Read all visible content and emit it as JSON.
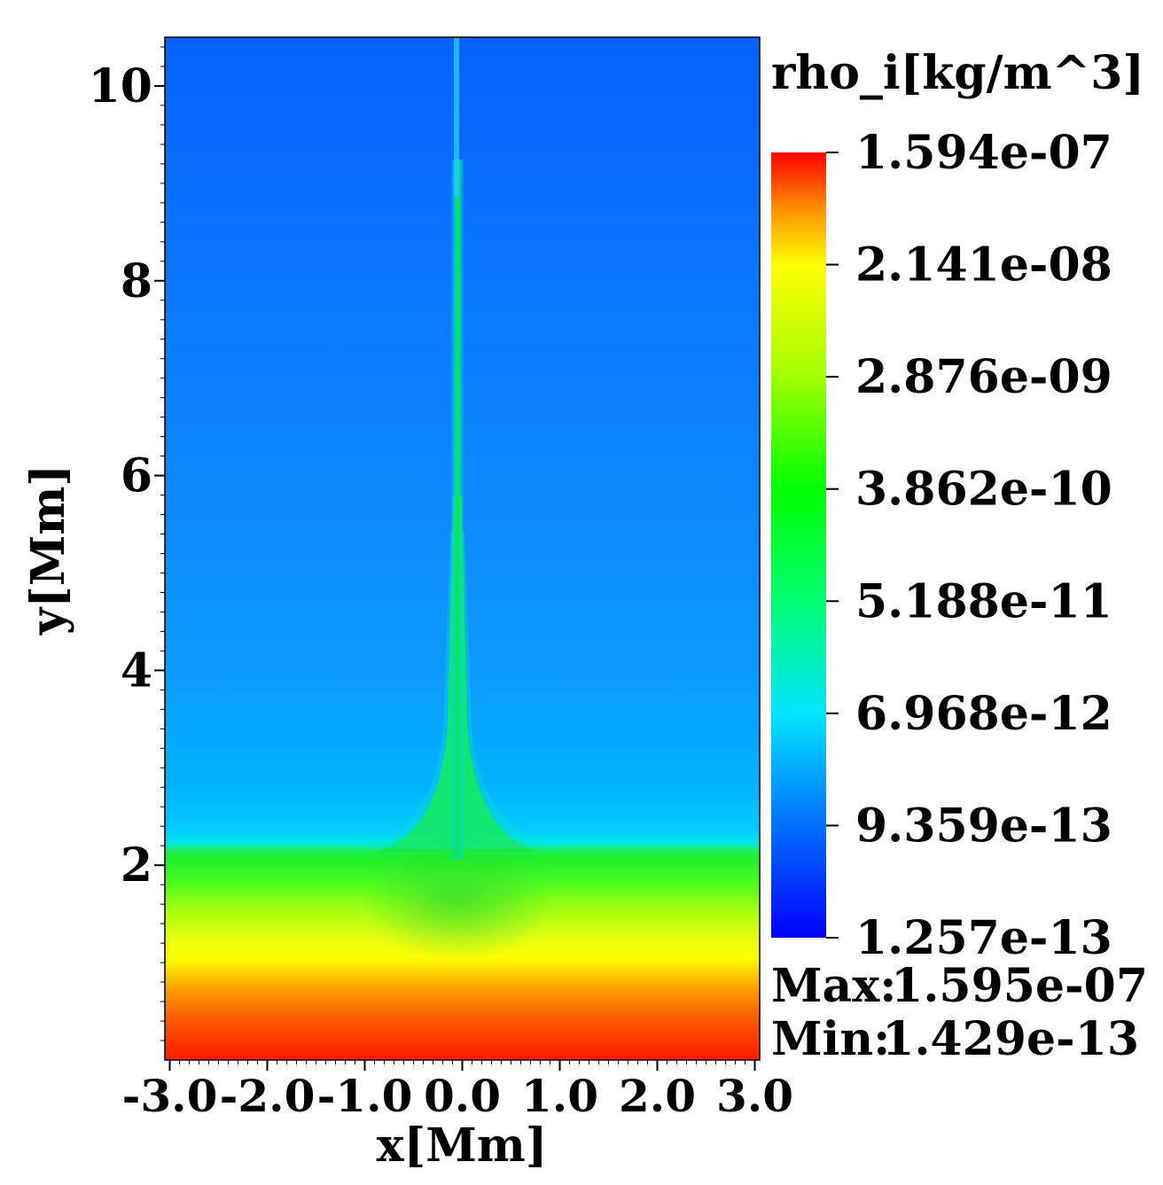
{
  "chart_data": {
    "type": "heatmap",
    "variable_label": "rho_i[kg/m^3]",
    "xlabel": "x[Mm]",
    "ylabel": "y[Mm]",
    "xlim": [
      -3.05,
      3.05
    ],
    "ylim": [
      0.0,
      10.5
    ],
    "x_ticks": [
      -3.0,
      -2.0,
      -1.0,
      0.0,
      1.0,
      2.0,
      3.0
    ],
    "x_tick_labels": [
      "-3.0",
      "-2.0",
      "-1.0",
      "0.0",
      "1.0",
      "2.0",
      "3.0"
    ],
    "y_ticks": [
      2,
      4,
      6,
      8,
      10
    ],
    "y_tick_labels": [
      "2",
      "4",
      "6",
      "8",
      "10"
    ],
    "colormap": [
      "#0000ff",
      "#0070ff",
      "#00e5ff",
      "#00ff70",
      "#00ff00",
      "#a0ff00",
      "#ffff00",
      "#ff8c00",
      "#ff0000"
    ],
    "colorbar": {
      "scale": "log",
      "ticks": [
        1.594e-07,
        2.141e-08,
        2.876e-09,
        3.862e-10,
        5.188e-11,
        6.968e-12,
        9.359e-13,
        1.257e-13
      ],
      "tick_labels": [
        "1.594e-07",
        "2.141e-08",
        "2.876e-09",
        "3.862e-10",
        "5.188e-11",
        "6.968e-12",
        "9.359e-13",
        "1.257e-13"
      ]
    },
    "stats": {
      "max_label": "Max:",
      "max_value": "1.595e-07",
      "min_label": "Min:",
      "min_value": "1.429e-13"
    },
    "field_description_values": {
      "background_upper_color": "#0a66ff",
      "chromosphere_color": "#1aef2a",
      "transition_height": 2.1,
      "jet_center_x": 0.0
    }
  }
}
